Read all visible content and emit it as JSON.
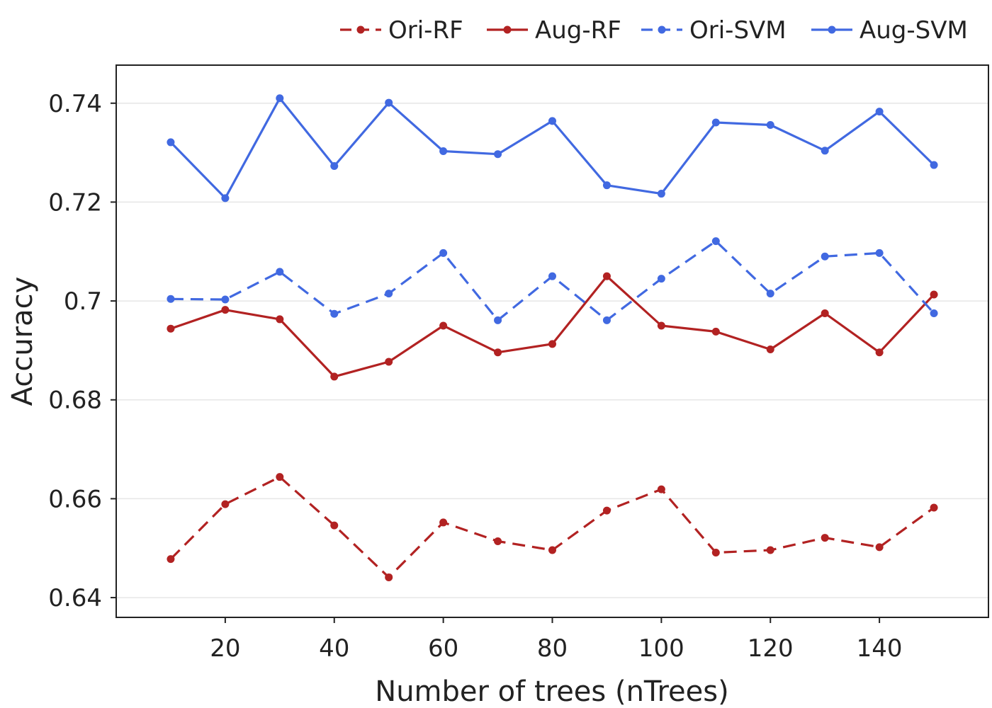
{
  "chart_data": {
    "type": "line",
    "title": "",
    "xlabel": "Number of trees (nTrees)",
    "ylabel": "Accuracy",
    "x": [
      10,
      20,
      30,
      40,
      50,
      60,
      70,
      80,
      90,
      100,
      110,
      120,
      130,
      140,
      150
    ],
    "xlim": [
      0,
      160
    ],
    "ylim": [
      0.636,
      0.7477
    ],
    "xticks": [
      20,
      40,
      60,
      80,
      100,
      120,
      140
    ],
    "yticks": [
      0.64,
      0.66,
      0.68,
      0.7,
      0.72,
      0.74
    ],
    "xtick_labels": [
      "20",
      "40",
      "60",
      "80",
      "100",
      "120",
      "140"
    ],
    "ytick_labels": [
      "0.64",
      "0.66",
      "0.68",
      "0.7",
      "0.72",
      "0.74"
    ],
    "grid": "horizontal",
    "legend_position": "top-right",
    "series": [
      {
        "name": "Ori-RF",
        "color": "#b22222",
        "dash": "dashed",
        "values": [
          0.6478,
          0.6589,
          0.6644,
          0.6546,
          0.6441,
          0.6552,
          0.6514,
          0.6496,
          0.6576,
          0.6619,
          0.6491,
          0.6496,
          0.6521,
          0.6502,
          0.6582
        ]
      },
      {
        "name": "Aug-RF",
        "color": "#b22222",
        "dash": "solid",
        "values": [
          0.6944,
          0.6982,
          0.6963,
          0.6847,
          0.6877,
          0.695,
          0.6896,
          0.6913,
          0.705,
          0.695,
          0.6938,
          0.6902,
          0.6975,
          0.6896,
          0.7013
        ]
      },
      {
        "name": "Ori-SVM",
        "color": "#4169e1",
        "dash": "dashed",
        "values": [
          0.7004,
          0.7003,
          0.7059,
          0.6974,
          0.7015,
          0.7097,
          0.6961,
          0.705,
          0.6961,
          0.7045,
          0.7121,
          0.7015,
          0.709,
          0.7097,
          0.6975
        ]
      },
      {
        "name": "Aug-SVM",
        "color": "#4169e1",
        "dash": "solid",
        "values": [
          0.7321,
          0.7208,
          0.741,
          0.7273,
          0.7401,
          0.7303,
          0.7297,
          0.7364,
          0.7234,
          0.7217,
          0.7361,
          0.7356,
          0.7304,
          0.7383,
          0.7275
        ]
      }
    ]
  }
}
